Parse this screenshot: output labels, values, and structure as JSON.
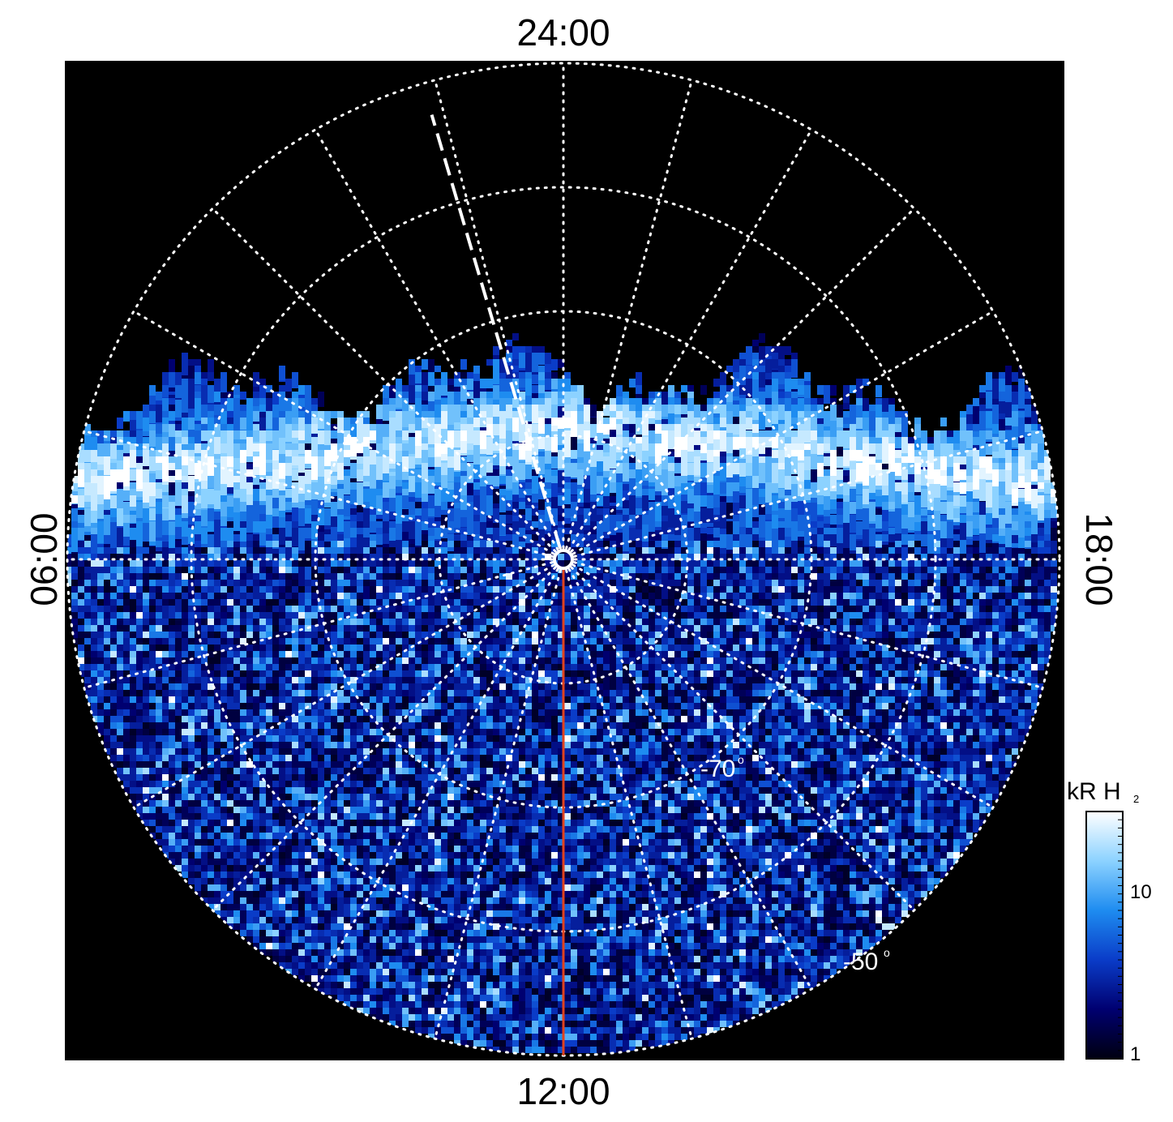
{
  "chart_data": {
    "type": "heatmap",
    "projection": "polar",
    "hemisphere": "south",
    "hour_labels": {
      "top": "24:00",
      "bottom": "12:00",
      "left": "06:00",
      "right": "18:00"
    },
    "latitude_labels": [
      {
        "value": "-70",
        "degree": "o"
      },
      {
        "value": "-50",
        "degree": "o"
      }
    ],
    "latitude_circles_deg": [
      90,
      80,
      70,
      60,
      50
    ],
    "meridian_step_hours": 1,
    "colorbar": {
      "title": "kR H",
      "title_subscript": "2",
      "scale": "log",
      "range": [
        1,
        30
      ],
      "tick_labels": [
        "1",
        "10"
      ],
      "colors": [
        "#000010",
        "#000070",
        "#0a3cc8",
        "#1e8cf0",
        "#8cd2ff",
        "#ffffff"
      ]
    },
    "grid": true,
    "features": {
      "dashed_meridian_hour": 1.1,
      "red_meridian_hour": 12,
      "red_color": "#e0421e",
      "pole_marker": "circle"
    }
  }
}
